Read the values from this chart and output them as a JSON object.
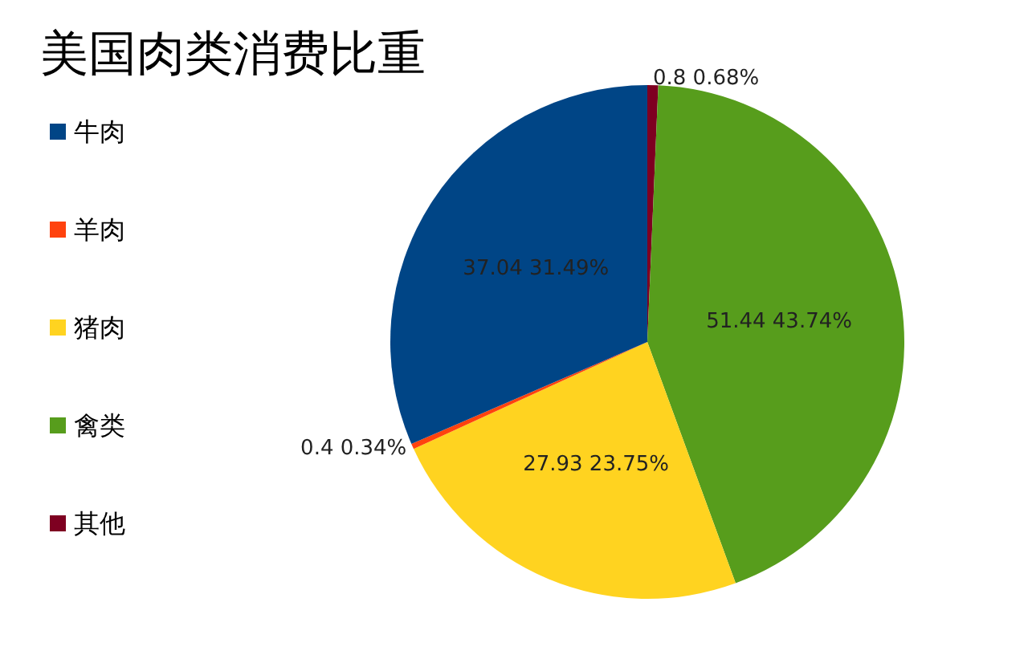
{
  "chart_data": {
    "type": "pie",
    "title": "美国肉类消费比重",
    "categories": [
      "牛肉",
      "羊肉",
      "猪肉",
      "禽类",
      "其他"
    ],
    "values": [
      37.04,
      0.4,
      27.93,
      51.44,
      0.8
    ],
    "colors": [
      "#004586",
      "#ff420e",
      "#ffd320",
      "#579d1c",
      "#7e0021"
    ],
    "value_labels": [
      "37.04 31.49%",
      "0.4 0.34%",
      "27.93 23.75%",
      "51.44 43.74%",
      "0.8 0.68%"
    ],
    "legend": "left"
  }
}
